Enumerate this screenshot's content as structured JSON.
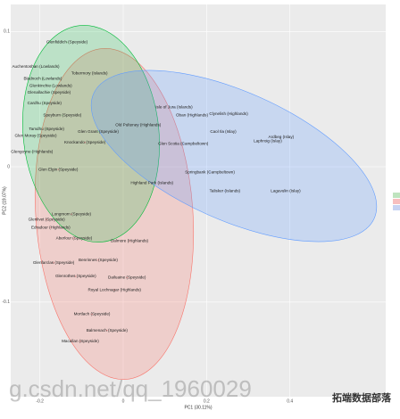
{
  "chart_data": {
    "type": "scatter",
    "x_label": "PC1 (30.11%)",
    "y_label": "PC2 (19.07%)",
    "xlim": [
      -0.27,
      0.63
    ],
    "ylim": [
      -0.17,
      0.12
    ],
    "xticks": [
      -0.2,
      0.0,
      0.2,
      0.4
    ],
    "yticks": [
      -0.1,
      0.0,
      0.1
    ],
    "grid": true,
    "series": [
      {
        "color": "#7fc97f",
        "labels": [
          "Glenfiddich (Speyside)",
          "Auchentoshan (Lowlands)",
          "Tobermory (Islands)",
          "Bladnoch (Lowlands)",
          "Glenkinchie (Lowlands)",
          "Glenallachie (Speyside)",
          "Cardhu (Speyside)",
          "Speyburn (Speyside)",
          "Tamdhu (Speyside)",
          "Glen Moray (Speyside)",
          "Glen Grant (Speyside)",
          "Glengoyne (Highlands)"
        ],
        "x": [
          -0.135,
          -0.21,
          -0.081,
          -0.193,
          -0.174,
          -0.178,
          -0.189,
          -0.146,
          -0.184,
          -0.21,
          -0.06,
          -0.219
        ],
        "values": [
          0.092,
          0.074,
          0.069,
          0.065,
          0.06,
          0.055,
          0.047,
          0.038,
          0.028,
          0.023,
          0.026,
          0.011
        ]
      },
      {
        "color": "#f08080",
        "labels": [
          "Knockando (Speyside)",
          "Glen Elgin (Speyside)",
          "Longmorn (Speyside)",
          "Glenlivet (Speyside)",
          "Edradour (Highlands)",
          "Aberlour (Speyside)",
          "Dalmore (Highlands)",
          "Glenfarclas (Speyside)",
          "Benrinnes (Speyside)",
          "Glenrothes (Speyside)",
          "Dailuaine (Speyside)",
          "Royal Lochnagar (Highlands)",
          "Mortlach (Speyside)",
          "Balmenach (Speyside)",
          "Macallan (Speyside)"
        ],
        "x": [
          -0.092,
          -0.156,
          -0.124,
          -0.184,
          -0.174,
          -0.118,
          0.015,
          -0.167,
          -0.06,
          -0.114,
          0.009,
          -0.021,
          -0.075,
          -0.039,
          -0.103
        ],
        "values": [
          0.018,
          -0.002,
          -0.035,
          -0.039,
          -0.045,
          -0.053,
          -0.055,
          -0.071,
          -0.069,
          -0.081,
          -0.082,
          -0.091,
          -0.109,
          -0.121,
          -0.129
        ]
      },
      {
        "color": "#8fa8e8",
        "labels": [
          "Isle of Jura (Islands)",
          "Oban (Highlands)",
          "Clynelish (Highlands)",
          "Old Pulteney (Highlands)",
          "Caol Ila (Islay)",
          "Ardbeg (Islay)",
          "Laphroig (Islay)",
          "Glen Scotia (Campbeltown)",
          "Springbank (Campbeltown)",
          "Highland Park (Islands)",
          "Talisker (Islands)",
          "Lagavulin (Islay)"
        ],
        "x": [
          0.122,
          0.165,
          0.253,
          0.036,
          0.24,
          0.379,
          0.347,
          0.144,
          0.208,
          0.069,
          0.244,
          0.39
        ],
        "values": [
          0.044,
          0.038,
          0.039,
          0.031,
          0.026,
          0.022,
          0.019,
          0.017,
          -0.004,
          -0.012,
          -0.018,
          -0.018
        ]
      }
    ]
  },
  "watermark": "g.csdn.net/qq_1960029",
  "brand": "拓端数据部落"
}
